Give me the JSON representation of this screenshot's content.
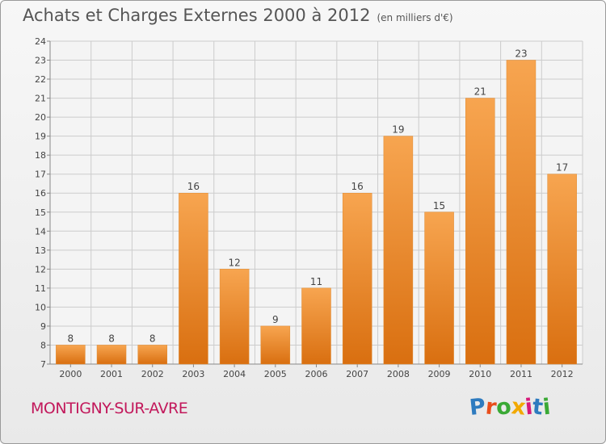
{
  "header": {
    "title": "Achats et Charges Externes 2000 à 2012",
    "unit": "(en milliers d'€)"
  },
  "footer": {
    "commune": "MONTIGNY-SUR-AVRE",
    "logo_text": "Proxiti"
  },
  "colors": {
    "bar_top": "#f7a550",
    "bar_bottom": "#d96f10",
    "commune": "#c2185b",
    "grid": "#cccccc"
  },
  "chart_data": {
    "type": "bar",
    "categories": [
      "2000",
      "2001",
      "2002",
      "2003",
      "2004",
      "2005",
      "2006",
      "2007",
      "2008",
      "2009",
      "2010",
      "2011",
      "2012"
    ],
    "values": [
      8,
      8,
      8,
      16,
      12,
      9,
      11,
      16,
      19,
      15,
      21,
      23,
      17
    ],
    "ylim": [
      7,
      24
    ],
    "yticks": [
      7,
      8,
      9,
      10,
      11,
      12,
      13,
      14,
      15,
      16,
      17,
      18,
      19,
      20,
      21,
      22,
      23,
      24
    ],
    "grid": true,
    "data_labels": true
  }
}
